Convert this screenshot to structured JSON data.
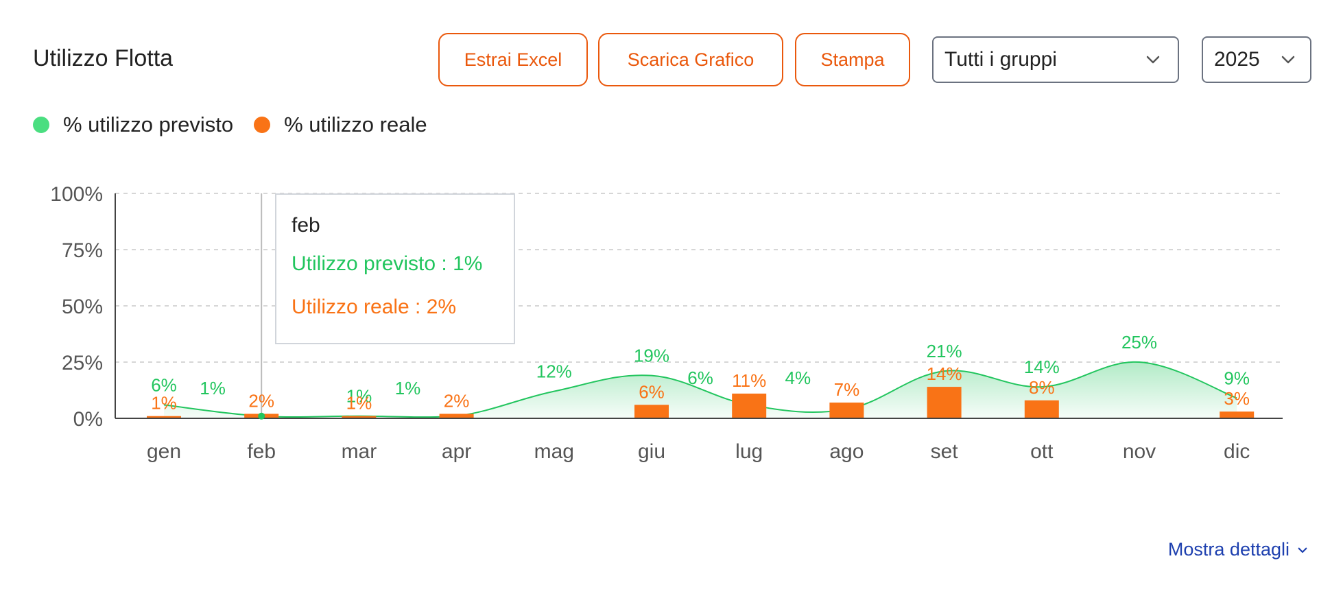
{
  "header": {
    "title": "Utilizzo Flotta",
    "buttons": {
      "excel": "Estrai Excel",
      "chart": "Scarica Grafico",
      "print": "Stampa"
    },
    "group_select": "Tutti i gruppi",
    "year_select": "2025"
  },
  "legend": {
    "planned": "% utilizzo previsto",
    "actual": "% utilizzo reale"
  },
  "tooltip": {
    "title": "feb",
    "planned": "Utilizzo previsto : 1%",
    "actual": "Utilizzo reale : 2%"
  },
  "footer": {
    "details": "Mostra dettagli"
  },
  "colors": {
    "planned": "#22c55e",
    "actual": "#f97316",
    "accent": "#ea580c",
    "link": "#1e40af"
  },
  "chart_data": {
    "type": "bar",
    "categories": [
      "gen",
      "feb",
      "mar",
      "apr",
      "mag",
      "giu",
      "lug",
      "ago",
      "set",
      "ott",
      "nov",
      "dic"
    ],
    "y_ticks": [
      "0%",
      "25%",
      "50%",
      "75%",
      "100%"
    ],
    "ylim": [
      0,
      100
    ],
    "grid": true,
    "series": [
      {
        "name": "% utilizzo previsto",
        "kind": "area",
        "color": "#22c55e",
        "values": [
          6,
          1,
          1,
          1,
          12,
          19,
          6,
          4,
          21,
          14,
          25,
          9
        ],
        "labels": [
          "6%",
          "1%",
          "1%",
          "1%",
          "12%",
          "19%",
          "6%",
          "4%",
          "21%",
          "14%",
          "25%",
          "9%"
        ]
      },
      {
        "name": "% utilizzo reale",
        "kind": "bar",
        "color": "#f97316",
        "values": [
          1,
          2,
          1,
          2,
          0,
          6,
          11,
          7,
          14,
          8,
          0,
          3
        ],
        "labels": [
          "1%",
          "2%",
          "1%",
          "2%",
          "",
          "6%",
          "11%",
          "7%",
          "14%",
          "8%",
          "",
          "3%"
        ]
      }
    ]
  }
}
